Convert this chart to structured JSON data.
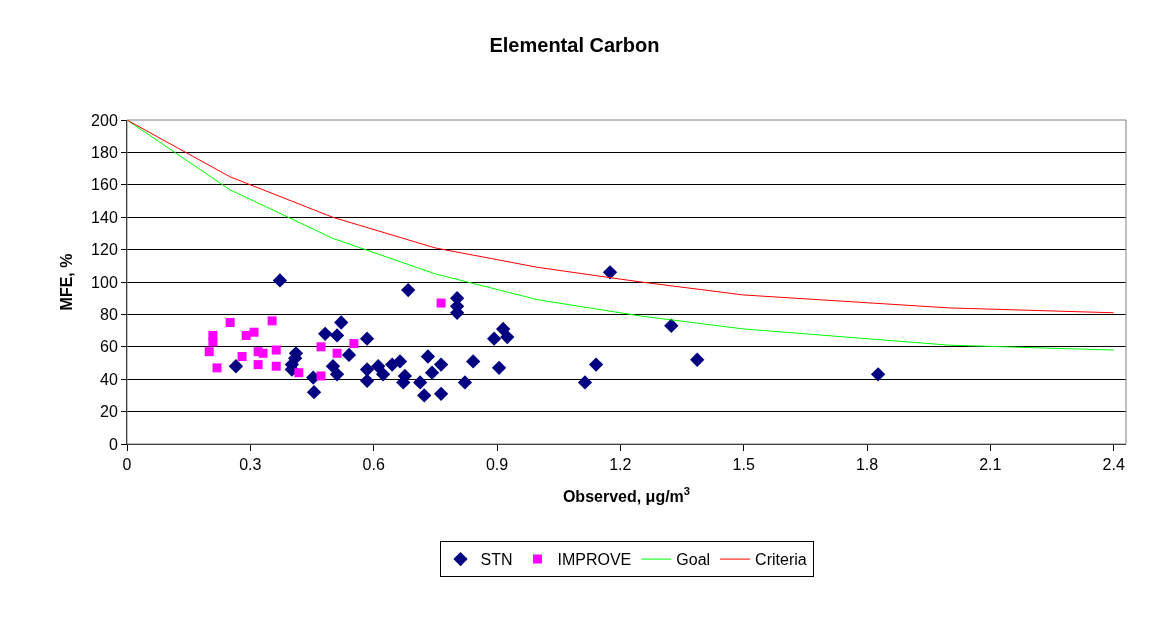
{
  "chart_data": {
    "type": "scatter",
    "title": "Elemental Carbon",
    "xlabel": "Observed, μg/m$^{3}$",
    "ylabel": "MFE, %",
    "xlim": [
      0,
      2.43
    ],
    "xticks": [
      0,
      0.3,
      0.6,
      0.9,
      1.2,
      1.5,
      1.8,
      2.1,
      2.4
    ],
    "ylim": [
      0,
      200
    ],
    "yticks": [
      0,
      20,
      40,
      60,
      80,
      100,
      120,
      140,
      160,
      180,
      200
    ],
    "grid": "y",
    "legend": "bottom",
    "series": [
      {
        "name": "STN",
        "marker": "diamond",
        "color": "#000080",
        "x": [
          0.372,
          0.265,
          0.411,
          0.409,
          0.401,
          0.401,
          0.453,
          0.455,
          0.482,
          0.521,
          0.511,
          0.54,
          0.501,
          0.511,
          0.584,
          0.584,
          0.584,
          0.611,
          0.623,
          0.645,
          0.672,
          0.684,
          0.803,
          0.803,
          0.803,
          0.915,
          0.893,
          0.925,
          0.664,
          0.676,
          0.732,
          0.764,
          0.742,
          0.713,
          0.723,
          0.764,
          0.822,
          0.842,
          0.905,
          1.114,
          1.141,
          1.175,
          1.324,
          1.387,
          1.827
        ],
        "values": [
          101,
          48,
          56,
          53,
          49,
          46,
          41,
          32,
          68,
          75,
          67,
          55,
          48,
          43,
          65,
          46,
          39,
          48,
          43,
          49,
          38,
          95,
          90,
          85,
          81,
          71,
          65,
          66,
          51,
          42,
          54,
          49,
          44,
          38,
          30,
          31,
          38,
          51,
          47,
          38,
          49,
          106,
          73,
          52,
          43
        ]
      },
      {
        "name": "IMPROVE",
        "marker": "square",
        "color": "#ff00ff",
        "x": [
          0.251,
          0.209,
          0.209,
          0.2,
          0.219,
          0.29,
          0.309,
          0.353,
          0.28,
          0.319,
          0.331,
          0.319,
          0.363,
          0.363,
          0.472,
          0.418,
          0.472,
          0.511,
          0.552,
          0.764
        ],
        "values": [
          75,
          67,
          63,
          57,
          47,
          67,
          69,
          76,
          54,
          57,
          56,
          49,
          58,
          48,
          60,
          44,
          42,
          56,
          62,
          87
        ]
      },
      {
        "name": "Goal",
        "type": "line",
        "marker": "none",
        "color": "#00ff00",
        "x": [
          0,
          0.25,
          0.5,
          0.75,
          1.0,
          1.25,
          1.5,
          2.0,
          2.4
        ],
        "values": [
          200,
          157,
          127,
          105,
          89,
          79,
          71,
          61,
          58
        ]
      },
      {
        "name": "Criteria",
        "type": "line",
        "marker": "none",
        "color": "#ff0000",
        "x": [
          0,
          0.25,
          0.5,
          0.75,
          1.0,
          1.25,
          1.5,
          2.0,
          2.4
        ],
        "values": [
          200,
          165,
          140,
          121,
          109,
          100,
          92,
          84,
          81
        ]
      }
    ]
  }
}
